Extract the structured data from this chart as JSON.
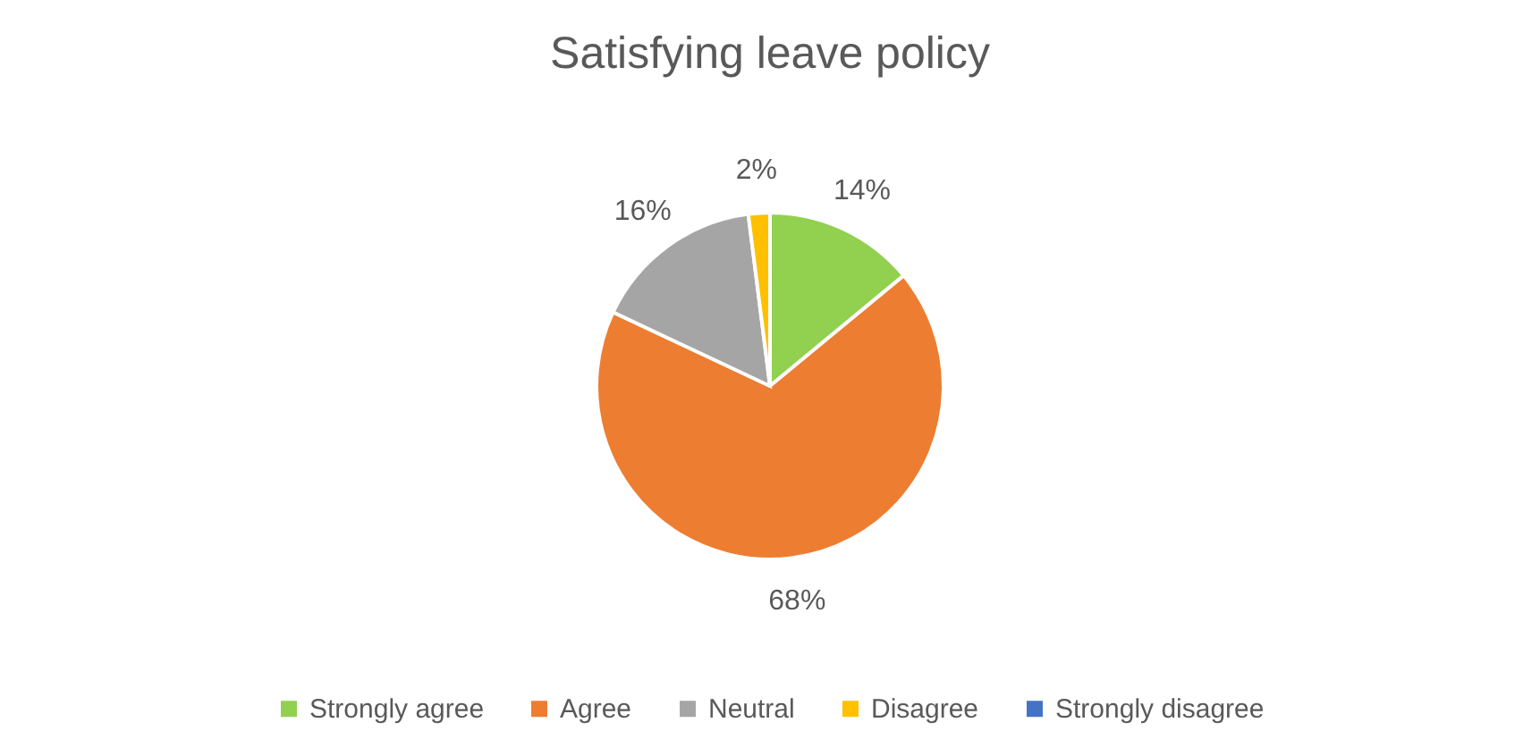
{
  "chart_data": {
    "type": "pie",
    "title": "Satisfying leave policy",
    "categories": [
      "Strongly agree",
      "Agree",
      "Neutral",
      "Disagree",
      "Strongly disagree"
    ],
    "values": [
      14,
      68,
      16,
      2,
      0
    ],
    "colors": [
      "#92d050",
      "#ed7d31",
      "#a5a5a5",
      "#ffc000",
      "#4472c4"
    ],
    "value_labels": [
      "14%",
      "68%",
      "16%",
      "2%",
      null
    ],
    "legend": "bottom"
  }
}
